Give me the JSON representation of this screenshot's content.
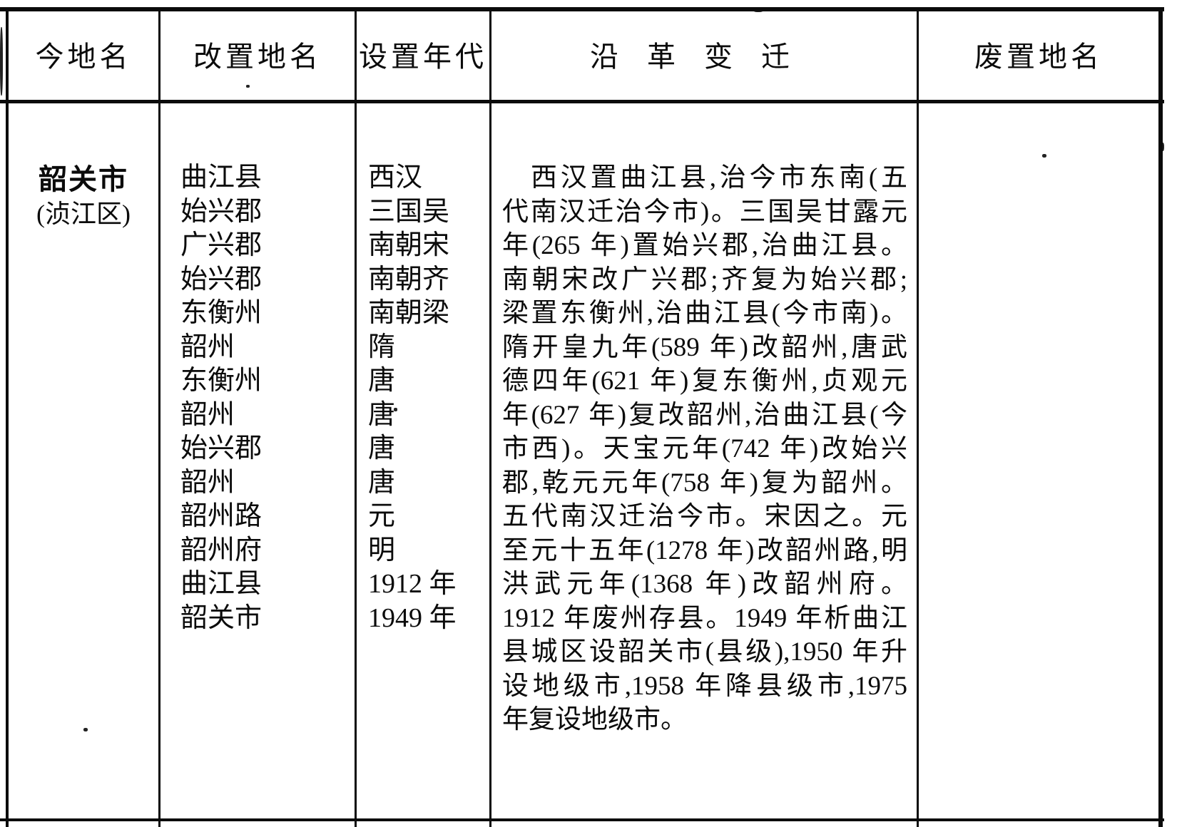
{
  "table": {
    "headers": [
      "今地名",
      "改置地名",
      "设置年代",
      "沿革变迁",
      "废置地名"
    ],
    "row": {
      "current_place": "韶关市",
      "current_district": "(浈江区)",
      "renamed_places": [
        "曲江县",
        "始兴郡",
        "广兴郡",
        "始兴郡",
        "东衡州",
        "韶州",
        "东衡州",
        "韶州",
        "始兴郡",
        "韶州",
        "韶州路",
        "韶州府",
        "曲江县",
        "韶关市"
      ],
      "establishment_eras": [
        "西汉",
        "三国吴",
        "南朝宋",
        "南朝齐",
        "南朝梁",
        "隋",
        "唐",
        "唐",
        "唐",
        "唐",
        "元",
        "明",
        "1912 年",
        "1949 年"
      ],
      "evolution_lines": [
        "西汉置曲江县,治今市东南(五",
        "代南汉迁治今市)。三国吴甘露元",
        "年(265 年)置始兴郡,治曲江县。",
        "南朝宋改广兴郡;齐复为始兴郡;",
        "梁置东衡州,治曲江县(今市南)。",
        "隋开皇九年(589 年)改韶州,唐武",
        "德四年(621 年)复东衡州,贞观元",
        "年(627 年)复改韶州,治曲江县(今",
        "市西)。天宝元年(742 年)改始兴",
        "郡,乾元元年(758 年)复为韶州。",
        "五代南汉迁治今市。宋因之。元",
        "至元十五年(1278 年)改韶州路,明",
        "洪武元年(1368 年)改韶州府。",
        "1912 年废州存县。1949 年析曲江",
        "县城区设韶关市(县级),1950 年升",
        "设地级市,1958 年降县级市,1975",
        "年复设地级市。"
      ],
      "abolished_place": ""
    }
  }
}
